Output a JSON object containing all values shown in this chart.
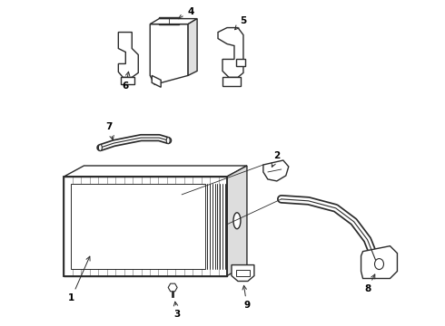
{
  "bg_color": "#ffffff",
  "line_color": "#2a2a2a",
  "label_color": "#000000",
  "figsize": [
    4.9,
    3.6
  ],
  "dpi": 100,
  "lw_main": 1.0,
  "lw_thin": 0.6,
  "lw_hose": 3.5,
  "label_fs": 7.5
}
